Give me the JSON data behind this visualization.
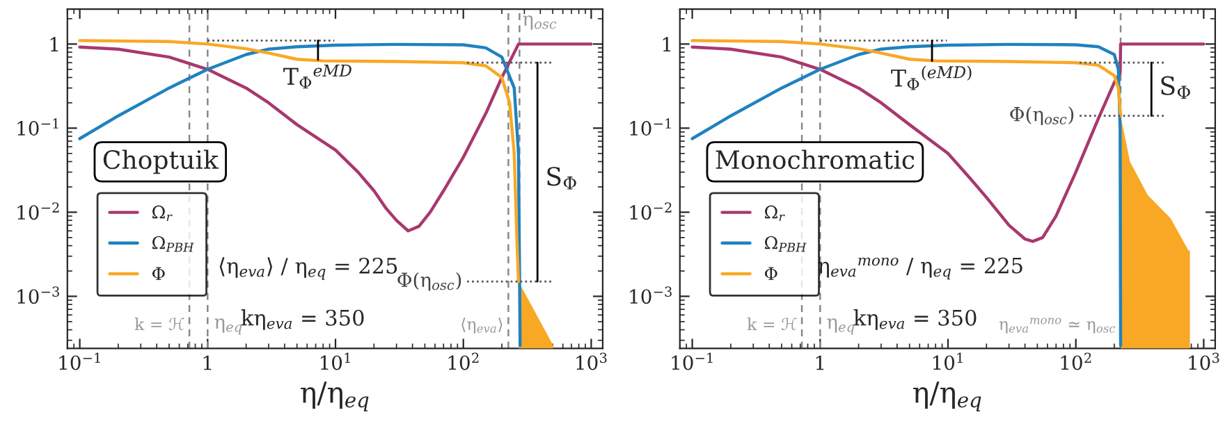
{
  "chart_data": [
    {
      "type": "line",
      "title": "Choptuik",
      "xlabel": "η/η$_{eq}$",
      "log": "xy",
      "grid": false,
      "legend": "bottom left",
      "xlim": [
        0.08,
        1230
      ],
      "ylim": [
        0.00024,
        2.6
      ],
      "xticks": [
        {
          "value": 0.1,
          "label": "10$^{−1}$"
        },
        {
          "value": 1,
          "label": "1"
        },
        {
          "value": 10,
          "label": "10$^{1}$"
        },
        {
          "value": 100,
          "label": "10$^{2}$"
        },
        {
          "value": 1000,
          "label": "10$^{3}$"
        }
      ],
      "yticks": [
        {
          "value": 0.001,
          "label": "10$^{−3}$"
        },
        {
          "value": 0.01,
          "label": "10$^{−2}$"
        },
        {
          "value": 0.1,
          "label": "10$^{−1}$"
        },
        {
          "value": 1,
          "label": "1"
        }
      ],
      "series": [
        {
          "name": "Ω$_{r}$",
          "color": "#a8386e",
          "x": [
            0.1,
            0.2,
            0.5,
            1,
            2,
            3,
            5,
            10,
            15,
            20,
            25,
            30,
            37,
            45,
            55,
            70,
            100,
            150,
            200,
            270,
            1000
          ],
          "values": [
            0.92,
            0.87,
            0.7,
            0.5,
            0.3,
            0.2,
            0.11,
            0.055,
            0.03,
            0.018,
            0.011,
            0.008,
            0.006,
            0.0068,
            0.01,
            0.018,
            0.045,
            0.15,
            0.4,
            1,
            1
          ]
        },
        {
          "name": "Ω$_{PBH}$",
          "color": "#1f82c0",
          "x": [
            0.1,
            0.2,
            0.5,
            1,
            2,
            3,
            5,
            10,
            30,
            100,
            150,
            200,
            250,
            270,
            275,
            278
          ],
          "values": [
            0.075,
            0.14,
            0.3,
            0.5,
            0.75,
            0.87,
            0.93,
            0.97,
            0.99,
            0.98,
            0.9,
            0.7,
            0.3,
            0.05,
            0.002,
            0.00026
          ]
        },
        {
          "name": "Φ",
          "color": "#f9a825",
          "x": [
            0.1,
            0.5,
            1,
            2,
            3,
            5,
            8,
            30,
            100,
            150,
            200,
            230,
            250,
            262,
            270
          ],
          "values": [
            1.1,
            1.07,
            1.0,
            0.88,
            0.78,
            0.66,
            0.63,
            0.62,
            0.6,
            0.55,
            0.4,
            0.2,
            0.05,
            0.005,
            0.0015
          ]
        },
        {
          "type": "area",
          "color": "#f9a825",
          "x": [
            270,
            505
          ],
          "values": [
            0.0015,
            0.00026
          ]
        },
        {
          "color": "#555555",
          "line_style": "dotted",
          "x": [
            1,
            9.8
          ],
          "values": [
            1.1,
            1.1
          ]
        },
        {
          "color": "#555555",
          "line_style": "dotted",
          "x": [
            107,
            490
          ],
          "values": [
            0.6,
            0.6
          ]
        },
        {
          "color": "#555555",
          "line_style": "dotted",
          "x": [
            107,
            490
          ],
          "values": [
            0.0015,
            0.0015
          ]
        },
        {
          "color": "#000000",
          "x": [
            7.3,
            7.3
          ],
          "values": [
            1.1,
            0.65
          ]
        },
        {
          "color": "#000000",
          "x": [
            380,
            380
          ],
          "values": [
            0.6,
            0.0015
          ]
        }
      ],
      "ref_lines": [
        {
          "axis": "x",
          "value": 0.72,
          "label": "k = ℋ",
          "color": "#888888",
          "line_style": "dashed"
        },
        {
          "axis": "x",
          "value": 1,
          "label": "η$_{eq}$",
          "color": "#888888",
          "line_style": "dashed"
        },
        {
          "axis": "x",
          "value": 225,
          "label": "⟨η$_{eva}$⟩",
          "color": "#888888",
          "line_style": "dashed"
        },
        {
          "axis": "x",
          "value": 275,
          "label": "η$_{osc}$",
          "color": "#888888",
          "line_style": "dashed"
        }
      ],
      "annotations": [
        "⟨η$_{eva}$⟩ / η$_{eq}$ = 225",
        "kη$_{eva}$ = 350",
        {
          "text": "T$_{Φ}$$^{eMD}$",
          "x": 7.3,
          "y": 0.65
        },
        {
          "text": "S$_{Φ}$",
          "x": 380,
          "y": 0.025
        },
        {
          "text": "Φ(η$_{osc}$)",
          "x": 107,
          "y": 0.0015
        }
      ]
    },
    {
      "type": "line",
      "title": "Monochromatic",
      "xlabel": "η/η$_{eq}$",
      "log": "xy",
      "grid": false,
      "legend": "bottom left",
      "xlim": [
        0.08,
        1230
      ],
      "ylim": [
        0.00024,
        2.6
      ],
      "xticks": [
        {
          "value": 0.1,
          "label": "10$^{−1}$"
        },
        {
          "value": 1,
          "label": "1"
        },
        {
          "value": 10,
          "label": "10$^{1}$"
        },
        {
          "value": 100,
          "label": "10$^{2}$"
        },
        {
          "value": 1000,
          "label": "10$^{3}$"
        }
      ],
      "yticks": [
        {
          "value": 0.001,
          "label": "10$^{−3}$"
        },
        {
          "value": 0.01,
          "label": "10$^{−2}$"
        },
        {
          "value": 0.1,
          "label": "10$^{−1}$"
        },
        {
          "value": 1,
          "label": "1"
        }
      ],
      "series": [
        {
          "name": "Ω$_{r}$",
          "color": "#a8386e",
          "x": [
            0.1,
            0.2,
            0.5,
            1,
            2,
            3,
            5,
            10,
            15,
            20,
            30,
            40,
            46,
            55,
            70,
            100,
            150,
            200,
            222,
            224,
            1000
          ],
          "values": [
            0.92,
            0.87,
            0.7,
            0.5,
            0.3,
            0.2,
            0.11,
            0.05,
            0.025,
            0.015,
            0.007,
            0.0048,
            0.0045,
            0.005,
            0.009,
            0.03,
            0.13,
            0.35,
            0.45,
            1,
            1
          ]
        },
        {
          "name": "Ω$_{PBH}$",
          "color": "#1f82c0",
          "x": [
            0.1,
            0.2,
            0.5,
            1,
            2,
            3,
            5,
            10,
            30,
            100,
            150,
            200,
            215,
            222,
            224
          ],
          "values": [
            0.075,
            0.14,
            0.3,
            0.5,
            0.75,
            0.87,
            0.93,
            0.97,
            0.99,
            0.98,
            0.93,
            0.75,
            0.5,
            0.1,
            0.00026
          ]
        },
        {
          "name": "Φ",
          "color": "#f9a825",
          "x": [
            0.1,
            0.5,
            1,
            2,
            3,
            5,
            8,
            30,
            100,
            150,
            200,
            215,
            224
          ],
          "values": [
            1.1,
            1.07,
            1.0,
            0.88,
            0.78,
            0.66,
            0.63,
            0.62,
            0.6,
            0.56,
            0.42,
            0.3,
            0.14
          ]
        },
        {
          "type": "area",
          "color": "#f9a825",
          "x": [
            224,
            265,
            365,
            550,
            760,
            780
          ],
          "values": [
            0.14,
            0.04,
            0.016,
            0.0085,
            0.0035,
            0.0035
          ]
        },
        {
          "color": "#555555",
          "line_style": "dotted",
          "x": [
            1,
            9.8
          ],
          "values": [
            1.1,
            1.1
          ]
        },
        {
          "color": "#555555",
          "line_style": "dotted",
          "x": [
            107,
            490
          ],
          "values": [
            0.6,
            0.6
          ]
        },
        {
          "color": "#555555",
          "line_style": "dotted",
          "x": [
            107,
            490
          ],
          "values": [
            0.14,
            0.14
          ]
        },
        {
          "color": "#000000",
          "x": [
            7.5,
            7.5
          ],
          "values": [
            1.1,
            0.63
          ]
        },
        {
          "color": "#000000",
          "x": [
            390,
            390
          ],
          "values": [
            0.6,
            0.14
          ]
        }
      ],
      "ref_lines": [
        {
          "axis": "x",
          "value": 0.72,
          "label": "k = ℋ",
          "color": "#888888",
          "line_style": "dashed"
        },
        {
          "axis": "x",
          "value": 1,
          "label": "η$_{eq}$",
          "color": "#888888",
          "line_style": "dashed"
        },
        {
          "axis": "x",
          "value": 224,
          "label": "η$_{eva}$$^{mono}$ ≃ η$_{osc}$",
          "color": "#888888",
          "line_style": "dashed"
        }
      ],
      "annotations": [
        "η$_{eva}$$^{mono}$ / η$_{eq}$ = 225",
        "kη$_{eva}$ = 350",
        {
          "text": "T$_{Φ}$$^{(eMD)}$",
          "x": 7.5,
          "y": 0.63
        },
        {
          "text": "S$_{Φ}$",
          "x": 390,
          "y": 0.3
        },
        {
          "text": "Φ(η$_{osc}$)",
          "x": 107,
          "y": 0.14
        }
      ]
    }
  ]
}
